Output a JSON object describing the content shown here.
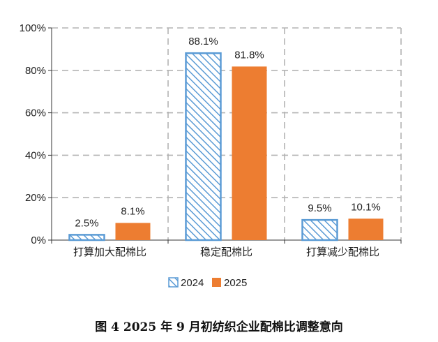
{
  "chart_data": {
    "type": "bar",
    "categories": [
      "打算加大配棉比",
      "稳定配棉比",
      "打算减少配棉比"
    ],
    "series": [
      {
        "name": "2024",
        "values": [
          2.5,
          88.1,
          9.5
        ],
        "labels": [
          "2.5%",
          "88.1%",
          "9.5%"
        ],
        "color": "#5b9bd5",
        "fill": "hatched"
      },
      {
        "name": "2025",
        "values": [
          8.1,
          81.8,
          10.1
        ],
        "labels": [
          "8.1%",
          "81.8%",
          "10.1%"
        ],
        "color": "#ed7d31",
        "fill": "solid"
      }
    ],
    "yticks": [
      "0%",
      "20%",
      "40%",
      "60%",
      "80%",
      "100%"
    ],
    "ylim": [
      0,
      100
    ],
    "grid": true,
    "legend": "bottom",
    "caption": "图 4   2025 年 9 月初纺织企业配棉比调整意向"
  }
}
